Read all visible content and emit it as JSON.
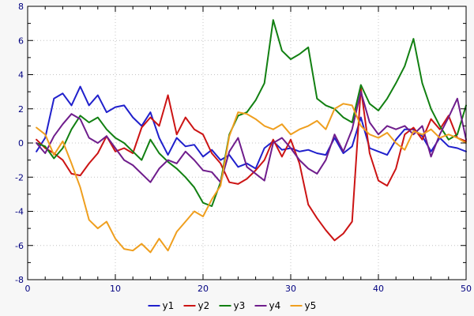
{
  "chart_data": {
    "type": "line",
    "title": "",
    "xlabel": "",
    "ylabel": "",
    "xlim": [
      0,
      50
    ],
    "ylim": [
      -8,
      8
    ],
    "x_ticks": [
      0,
      10,
      20,
      30,
      40,
      50
    ],
    "y_ticks": [
      -8,
      -6,
      -4,
      -2,
      0,
      2,
      4,
      6,
      8
    ],
    "x_minor_step": 2,
    "y_minor_step": 1,
    "grid": true,
    "legend_position": "bottom-center",
    "colors": {
      "background": "#f7f7f7",
      "plot_background": "#ffffff",
      "grid": "#c4c4c4",
      "border": "#000000",
      "tick_label": "#000080",
      "legend_text": "#000000"
    },
    "x": [
      1,
      2,
      3,
      4,
      5,
      6,
      7,
      8,
      9,
      10,
      11,
      12,
      13,
      14,
      15,
      16,
      17,
      18,
      19,
      20,
      21,
      22,
      23,
      24,
      25,
      26,
      27,
      28,
      29,
      30,
      31,
      32,
      33,
      34,
      35,
      36,
      37,
      38,
      39,
      40,
      41,
      42,
      43,
      44,
      45,
      46,
      47,
      48,
      49,
      50
    ],
    "series": [
      {
        "name": "y1",
        "color": "#2020cc",
        "values": [
          -0.5,
          0.3,
          2.6,
          2.9,
          2.2,
          3.3,
          2.2,
          2.8,
          1.8,
          2.1,
          2.2,
          1.5,
          1.0,
          1.8,
          0.3,
          -0.7,
          0.3,
          -0.2,
          -0.1,
          -0.8,
          -0.4,
          -1.0,
          -0.7,
          -1.4,
          -1.2,
          -1.5,
          -0.3,
          0.1,
          -0.4,
          -0.3,
          -0.5,
          -0.4,
          -0.6,
          -0.7,
          0.3,
          -0.6,
          -0.2,
          1.5,
          -0.3,
          -0.5,
          -0.7,
          0.2,
          0.8,
          0.8,
          0.4,
          -0.5,
          0.3,
          -0.2,
          -0.3,
          -0.5
        ]
      },
      {
        "name": "y2",
        "color": "#cc1414",
        "values": [
          0.2,
          -0.3,
          -0.6,
          -1.0,
          -1.8,
          -1.9,
          -1.2,
          -0.6,
          0.4,
          -0.5,
          -0.3,
          -0.6,
          0.9,
          1.5,
          1.0,
          2.8,
          0.5,
          1.5,
          0.8,
          0.5,
          -0.6,
          -1.2,
          -2.3,
          -2.4,
          -2.1,
          -1.6,
          -1.0,
          0.2,
          -0.8,
          0.2,
          -1.2,
          -3.6,
          -4.4,
          -5.1,
          -5.7,
          -5.3,
          -4.6,
          3.2,
          -0.6,
          -2.2,
          -2.5,
          -1.5,
          0.5,
          0.9,
          0.2,
          1.4,
          0.8,
          1.6,
          0.3,
          0.1
        ]
      },
      {
        "name": "y3",
        "color": "#128012",
        "values": [
          0.0,
          -0.2,
          -0.9,
          -0.3,
          0.8,
          1.6,
          1.2,
          1.5,
          0.8,
          0.3,
          0.0,
          -0.5,
          -1.0,
          0.2,
          -0.6,
          -1.1,
          -1.5,
          -2.0,
          -2.6,
          -3.5,
          -3.7,
          -2.3,
          0.5,
          1.6,
          1.8,
          2.5,
          3.5,
          7.2,
          5.4,
          4.9,
          5.2,
          5.6,
          2.6,
          2.2,
          2.0,
          1.5,
          1.2,
          3.4,
          2.3,
          1.9,
          2.6,
          3.5,
          4.5,
          6.1,
          3.5,
          2.0,
          1.0,
          0.2,
          0.5,
          2.2
        ]
      },
      {
        "name": "y4",
        "color": "#6f1d8c",
        "values": [
          0.0,
          -0.6,
          0.4,
          1.1,
          1.7,
          1.4,
          0.3,
          0.0,
          0.4,
          -0.3,
          -1.0,
          -1.3,
          -1.8,
          -2.3,
          -1.5,
          -1.0,
          -1.2,
          -0.5,
          -1.0,
          -1.6,
          -1.7,
          -2.3,
          -0.5,
          0.3,
          -1.4,
          -1.8,
          -2.2,
          0.0,
          0.3,
          -0.3,
          -1.0,
          -1.5,
          -1.8,
          -1.0,
          0.5,
          -0.5,
          0.8,
          3.0,
          1.2,
          0.5,
          1.0,
          0.8,
          1.0,
          0.5,
          1.0,
          -0.8,
          0.5,
          1.5,
          2.6,
          0.2
        ]
      },
      {
        "name": "y5",
        "color": "#ef9f1f",
        "values": [
          0.9,
          0.5,
          -0.7,
          0.1,
          -1.2,
          -2.6,
          -4.5,
          -5.0,
          -4.6,
          -5.6,
          -6.2,
          -6.3,
          -5.9,
          -6.4,
          -5.6,
          -6.3,
          -5.2,
          -4.6,
          -4.0,
          -4.3,
          -3.3,
          -2.5,
          0.4,
          1.8,
          1.7,
          1.4,
          1.0,
          0.8,
          1.1,
          0.5,
          0.8,
          1.0,
          1.3,
          0.8,
          2.0,
          2.3,
          2.2,
          1.0,
          0.5,
          0.3,
          0.6,
          0.0,
          -0.4,
          0.7,
          0.5,
          0.8,
          0.3,
          0.5,
          0.3,
          0.0
        ]
      }
    ],
    "legend_labels": [
      "y1",
      "y2",
      "y3",
      "y4",
      "y5"
    ]
  }
}
